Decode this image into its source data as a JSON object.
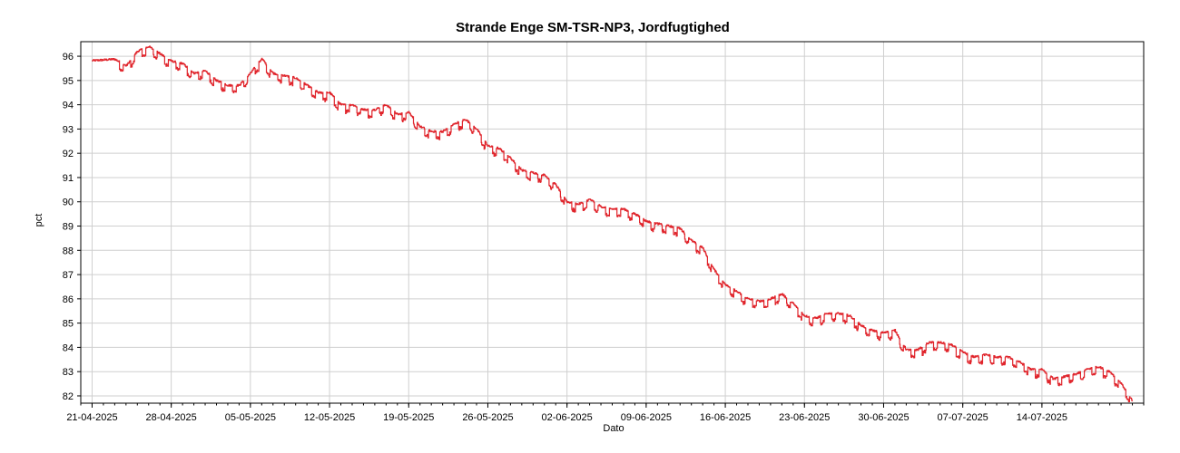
{
  "chart_data": {
    "type": "line",
    "title": "Strande Enge SM-TSR-NP3, Jordfugtighed",
    "xlabel": "Dato",
    "ylabel": "pct",
    "ylim": [
      81.7,
      96.6
    ],
    "y_ticks": [
      82,
      83,
      84,
      85,
      86,
      87,
      88,
      89,
      90,
      91,
      92,
      93,
      94,
      95,
      96
    ],
    "x_ticks": [
      "21-04-2025",
      "28-04-2025",
      "05-05-2025",
      "12-05-2025",
      "19-05-2025",
      "26-05-2025",
      "02-06-2025",
      "09-06-2025",
      "16-06-2025",
      "23-06-2025",
      "30-06-2025",
      "07-07-2025",
      "14-07-2025"
    ],
    "x_range": [
      "20-04-2025",
      "23-07-2025"
    ],
    "grid": true,
    "line_color": "#e0242b",
    "series": [
      {
        "name": "",
        "x": [
          "21-04-2025",
          "22-04-2025",
          "23-04-2025",
          "24-04-2025",
          "25-04-2025",
          "26-04-2025",
          "27-04-2025",
          "28-04-2025",
          "29-04-2025",
          "30-04-2025",
          "01-05-2025",
          "02-05-2025",
          "03-05-2025",
          "04-05-2025",
          "05-05-2025",
          "06-05-2025",
          "07-05-2025",
          "08-05-2025",
          "09-05-2025",
          "10-05-2025",
          "11-05-2025",
          "12-05-2025",
          "13-05-2025",
          "14-05-2025",
          "15-05-2025",
          "16-05-2025",
          "17-05-2025",
          "18-05-2025",
          "19-05-2025",
          "20-05-2025",
          "21-05-2025",
          "22-05-2025",
          "23-05-2025",
          "24-05-2025",
          "25-05-2025",
          "26-05-2025",
          "27-05-2025",
          "28-05-2025",
          "29-05-2025",
          "30-05-2025",
          "31-05-2025",
          "01-06-2025",
          "02-06-2025",
          "03-06-2025",
          "04-06-2025",
          "05-06-2025",
          "06-06-2025",
          "07-06-2025",
          "08-06-2025",
          "09-06-2025",
          "10-06-2025",
          "11-06-2025",
          "12-06-2025",
          "13-06-2025",
          "14-06-2025",
          "15-06-2025",
          "16-06-2025",
          "17-06-2025",
          "18-06-2025",
          "19-06-2025",
          "20-06-2025",
          "21-06-2025",
          "22-06-2025",
          "23-06-2025",
          "24-06-2025",
          "25-06-2025",
          "26-06-2025",
          "27-06-2025",
          "28-06-2025",
          "29-06-2025",
          "30-06-2025",
          "01-07-2025",
          "02-07-2025",
          "03-07-2025",
          "04-07-2025",
          "05-07-2025",
          "06-07-2025",
          "07-07-2025",
          "08-07-2025",
          "09-07-2025",
          "10-07-2025",
          "11-07-2025",
          "12-07-2025",
          "13-07-2025",
          "14-07-2025",
          "15-07-2025",
          "16-07-2025",
          "17-07-2025",
          "18-07-2025",
          "19-07-2025",
          "20-07-2025",
          "21-07-2025",
          "22-07-2025"
        ],
        "y": [
          95.82,
          95.85,
          95.88,
          95.6,
          96.2,
          96.4,
          96.1,
          95.8,
          95.7,
          95.3,
          95.4,
          95.0,
          94.8,
          94.8,
          95.3,
          95.9,
          95.3,
          95.2,
          95.1,
          94.8,
          94.5,
          94.5,
          94.0,
          94.0,
          93.8,
          93.8,
          94.0,
          93.6,
          93.7,
          93.1,
          92.9,
          92.9,
          93.2,
          93.4,
          93.0,
          92.3,
          92.2,
          91.8,
          91.3,
          91.2,
          91.1,
          90.7,
          90.0,
          89.9,
          90.1,
          89.8,
          89.7,
          89.7,
          89.5,
          89.2,
          89.1,
          89.0,
          88.9,
          88.4,
          88.1,
          87.2,
          86.6,
          86.3,
          86.0,
          85.9,
          86.0,
          86.2,
          85.8,
          85.3,
          85.2,
          85.4,
          85.4,
          85.3,
          84.9,
          84.7,
          84.6,
          84.7,
          83.9,
          83.9,
          84.2,
          84.2,
          84.1,
          83.8,
          83.6,
          83.7,
          83.6,
          83.6,
          83.4,
          83.1,
          83.1,
          82.7,
          82.8,
          82.9,
          83.1,
          83.2,
          83.0,
          82.5,
          81.8
        ]
      }
    ]
  }
}
